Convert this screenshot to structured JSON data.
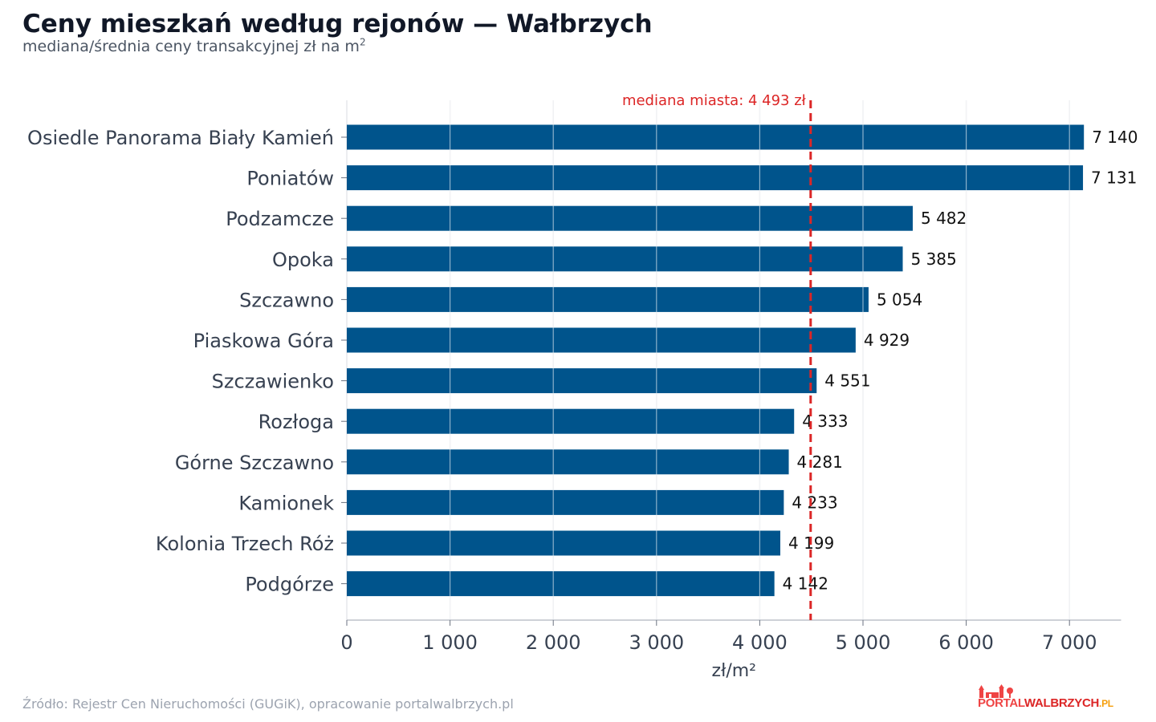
{
  "title": "Ceny mieszkań według rejonów — Wałbrzych",
  "subtitle": "mediana/średnia ceny transakcyjnej zł na m",
  "subtitle_sup": "2",
  "source": "Źródło: Rejestr Cen Nieruchomości (GUGiK), opracowanie portalwalbrzych.pl",
  "logo": {
    "part1": "PORTAL",
    "part2": "WALBRZYCH",
    "part3": ".PL"
  },
  "colors": {
    "bar": "#00548c",
    "median": "#dc2626",
    "grid": "#e5e7eb",
    "label": "#374151",
    "value": "#111111"
  },
  "chart_data": {
    "type": "bar",
    "orientation": "horizontal",
    "categories": [
      "Osiedle Panorama Biały Kamień",
      "Poniatów",
      "Podzamcze",
      "Opoka",
      "Szczawno",
      "Piaskowa Góra",
      "Szczawienko",
      "Rozłoga",
      "Górne Szczawno",
      "Kamionek",
      "Kolonia Trzech Róż",
      "Podgórze"
    ],
    "values": [
      7140,
      7131,
      5482,
      5385,
      5054,
      4929,
      4551,
      4333,
      4281,
      4233,
      4199,
      4142
    ],
    "value_labels": [
      "7 140",
      "7 131",
      "5 482",
      "5 385",
      "5 054",
      "4 929",
      "4 551",
      "4 333",
      "4 281",
      "4 233",
      "4 199",
      "4 142"
    ],
    "xlabel": "zł/m²",
    "xlim": [
      0,
      7500
    ],
    "xticks": [
      0,
      1000,
      2000,
      3000,
      4000,
      5000,
      6000,
      7000
    ],
    "xtick_labels": [
      "0",
      "1 000",
      "2 000",
      "3 000",
      "4 000",
      "5 000",
      "6 000",
      "7 000"
    ],
    "grid": true,
    "reference_line": {
      "value": 4493,
      "label": "mediana miasta: 4 493 zł"
    }
  }
}
